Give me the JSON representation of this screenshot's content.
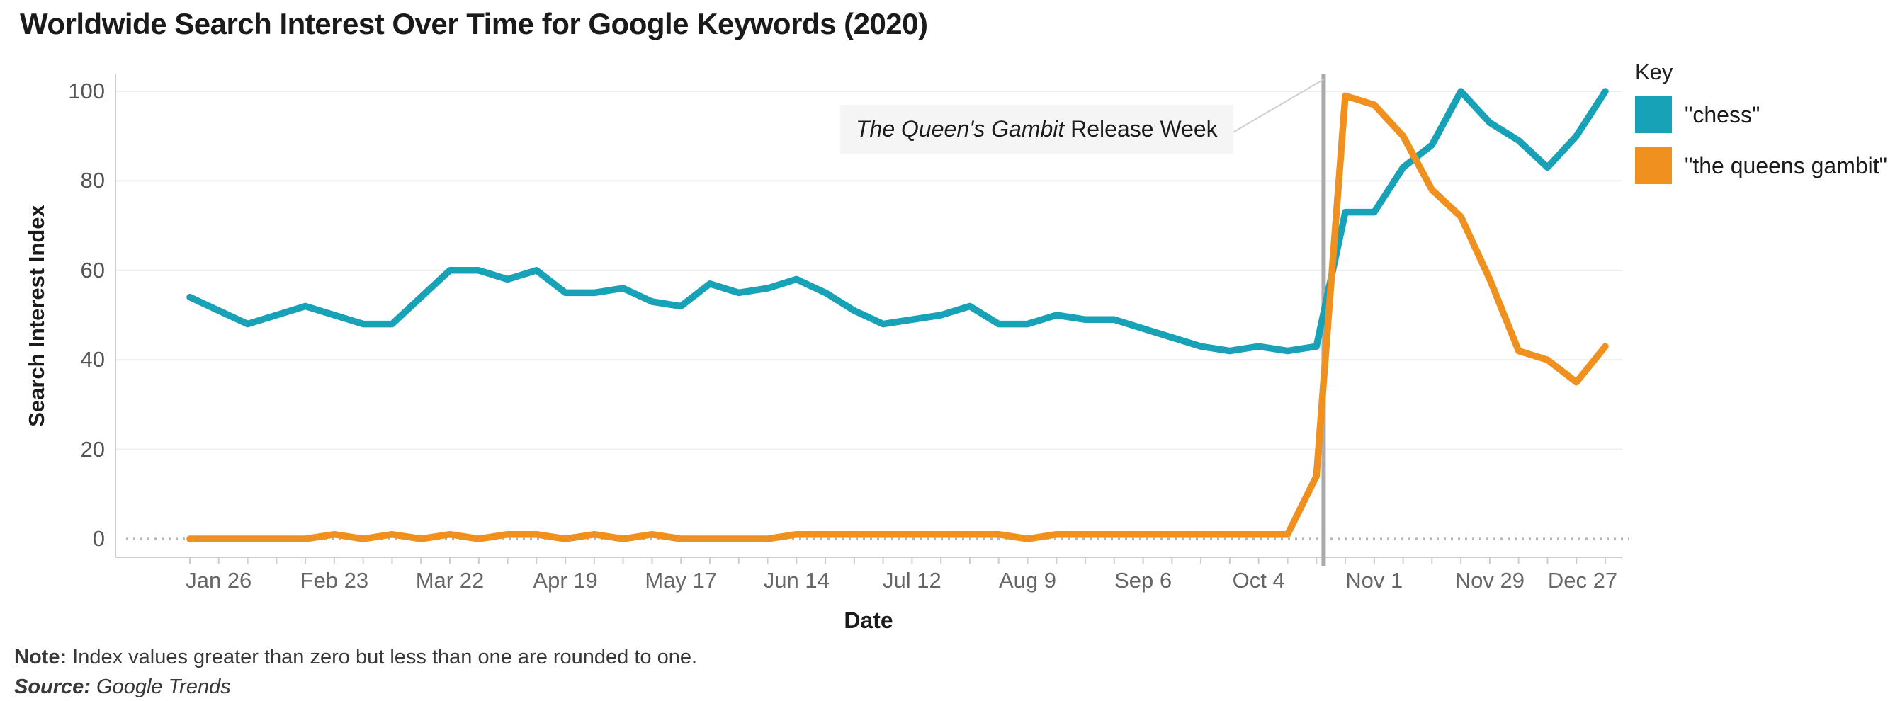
{
  "title": "Worldwide Search Interest Over Time for Google Keywords (2020)",
  "chart_data": {
    "type": "line",
    "title": "Worldwide Search Interest Over Time for Google Keywords (2020)",
    "xlabel": "Date",
    "ylabel": "Search Interest Index",
    "ylim": [
      0,
      100
    ],
    "yticks": [
      0,
      20,
      40,
      60,
      80,
      100
    ],
    "grid": "horizontal",
    "zero_line": "dotted",
    "legend": {
      "title": "Key",
      "position": "top-right"
    },
    "x_weekly_dates": [
      "Jan 19",
      "Jan 26",
      "Feb 2",
      "Feb 9",
      "Feb 16",
      "Feb 23",
      "Mar 1",
      "Mar 8",
      "Mar 15",
      "Mar 22",
      "Mar 29",
      "Apr 5",
      "Apr 12",
      "Apr 19",
      "Apr 26",
      "May 3",
      "May 10",
      "May 17",
      "May 24",
      "May 31",
      "Jun 7",
      "Jun 14",
      "Jun 21",
      "Jun 28",
      "Jul 5",
      "Jul 12",
      "Jul 19",
      "Jul 26",
      "Aug 2",
      "Aug 9",
      "Aug 16",
      "Aug 23",
      "Aug 30",
      "Sep 6",
      "Sep 13",
      "Sep 20",
      "Sep 27",
      "Oct 4",
      "Oct 11",
      "Oct 18",
      "Oct 25",
      "Nov 1",
      "Nov 8",
      "Nov 15",
      "Nov 22",
      "Nov 29",
      "Dec 6",
      "Dec 13",
      "Dec 20",
      "Dec 27"
    ],
    "x_tick_labels": [
      "Jan 26",
      "Feb 23",
      "Mar 22",
      "Apr 19",
      "May 17",
      "Jun 14",
      "Jul 12",
      "Aug 9",
      "Sep 6",
      "Oct 4",
      "Nov 1",
      "Nov 29",
      "Dec 27"
    ],
    "x_tick_indices": [
      1,
      5,
      9,
      13,
      17,
      21,
      25,
      29,
      33,
      37,
      41,
      45,
      49
    ],
    "series": [
      {
        "name": "\"chess\"",
        "color": "#18A2B8",
        "values": [
          54,
          51,
          48,
          50,
          52,
          50,
          48,
          48,
          54,
          60,
          60,
          58,
          60,
          55,
          55,
          56,
          53,
          52,
          57,
          55,
          56,
          58,
          55,
          51,
          48,
          49,
          50,
          52,
          48,
          48,
          50,
          49,
          49,
          47,
          45,
          43,
          42,
          43,
          42,
          43,
          73,
          73,
          83,
          88,
          100,
          93,
          89,
          83,
          90,
          100
        ]
      },
      {
        "name": "\"the queens gambit\"",
        "color": "#F0901F",
        "values": [
          0,
          0,
          0,
          0,
          0,
          1,
          0,
          1,
          0,
          1,
          0,
          1,
          1,
          0,
          1,
          0,
          1,
          0,
          0,
          0,
          0,
          1,
          1,
          1,
          1,
          1,
          1,
          1,
          1,
          0,
          1,
          1,
          1,
          1,
          1,
          1,
          1,
          1,
          1,
          14,
          99,
          97,
          90,
          78,
          72,
          58,
          42,
          40,
          35,
          43
        ]
      }
    ],
    "annotation": {
      "label_italic": "The Queen's Gambit",
      "label_rest": " Release Week",
      "line_week_index": 39.25,
      "line_color": "#ABABAB"
    }
  },
  "footer": {
    "note_label": "Note:",
    "note_text": " Index values greater than zero but less than one are rounded to one.",
    "source_label": "Source:",
    "source_text": " Google Trends"
  }
}
